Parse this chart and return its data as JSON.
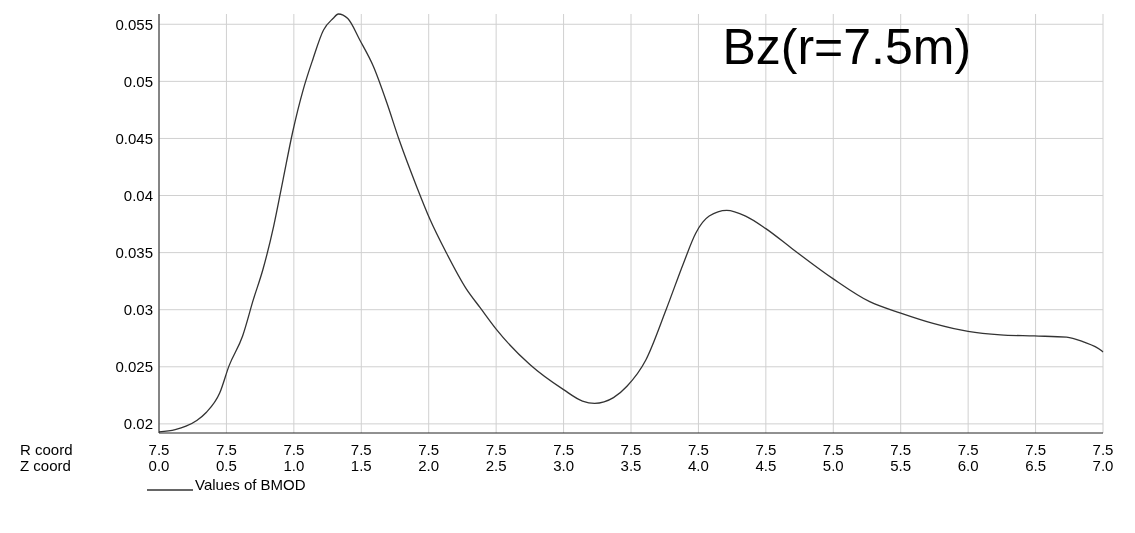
{
  "chart_data": {
    "type": "line",
    "title": "Bz(r=7.5m)",
    "xlabel": "Z coord",
    "annotations": [
      "R coord",
      "7.5",
      "7.5",
      "7.5",
      "7.5",
      "7.5",
      "7.5",
      "7.5",
      "7.5",
      "7.5",
      "7.5",
      "7.5",
      "7.5",
      "7.5",
      "7.5",
      "7.5"
    ],
    "xlim": [
      0,
      7
    ],
    "ylim": [
      0.0192,
      0.0559
    ],
    "xticks": [
      {
        "value": 0,
        "label": "0.0"
      },
      {
        "value": 0.5,
        "label": "0.5"
      },
      {
        "value": 1,
        "label": "1.0"
      },
      {
        "value": 1.5,
        "label": "1.5"
      },
      {
        "value": 2,
        "label": "2.0"
      },
      {
        "value": 2.5,
        "label": "2.5"
      },
      {
        "value": 3,
        "label": "3.0"
      },
      {
        "value": 3.5,
        "label": "3.5"
      },
      {
        "value": 4,
        "label": "4.0"
      },
      {
        "value": 4.5,
        "label": "4.5"
      },
      {
        "value": 5,
        "label": "5.0"
      },
      {
        "value": 5.5,
        "label": "5.5"
      },
      {
        "value": 6,
        "label": "6.0"
      },
      {
        "value": 6.5,
        "label": "6.5"
      },
      {
        "value": 7,
        "label": "7.0"
      }
    ],
    "yticks": [
      0.02,
      0.025,
      0.03,
      0.035,
      0.04,
      0.045,
      0.05,
      0.055
    ],
    "grid": true,
    "legend": "bottom left",
    "marker": "none",
    "line_style": "solid",
    "series": [
      {
        "name": "Values of BMOD",
        "color": "#333333",
        "x": [
          0,
          0.12,
          0.2,
          0.28,
          0.35,
          0.45,
          0.52,
          0.62,
          0.7,
          0.77,
          0.85,
          0.92,
          0.99,
          1.07,
          1.14,
          1.22,
          1.29,
          1.33,
          1.4,
          1.49,
          1.59,
          1.69,
          1.78,
          1.91,
          2.01,
          2.13,
          2.28,
          2.38,
          2.5,
          2.75,
          3.0,
          3.14,
          3.23,
          3.37,
          3.47,
          3.61,
          3.76,
          3.89,
          3.98,
          4.08,
          4.21,
          4.35,
          4.5,
          4.7,
          5.0,
          5.27,
          5.5,
          5.74,
          6.0,
          6.24,
          6.49,
          6.73,
          6.85,
          6.99,
          7.0
        ],
        "values": [
          0.0193,
          0.0195,
          0.0198,
          0.0203,
          0.021,
          0.0227,
          0.0251,
          0.0277,
          0.0309,
          0.0335,
          0.0373,
          0.0414,
          0.0455,
          0.0493,
          0.0519,
          0.0545,
          0.0555,
          0.0559,
          0.0555,
          0.0536,
          0.0513,
          0.0481,
          0.0449,
          0.0408,
          0.0379,
          0.035,
          0.0318,
          0.0302,
          0.0283,
          0.0252,
          0.023,
          0.022,
          0.0218,
          0.0223,
          0.0233,
          0.0256,
          0.03,
          0.0341,
          0.0367,
          0.0382,
          0.0387,
          0.0382,
          0.0371,
          0.0353,
          0.0327,
          0.0307,
          0.0297,
          0.0288,
          0.0281,
          0.0278,
          0.0277,
          0.0276,
          0.0272,
          0.0264,
          0.0263
        ]
      }
    ]
  }
}
